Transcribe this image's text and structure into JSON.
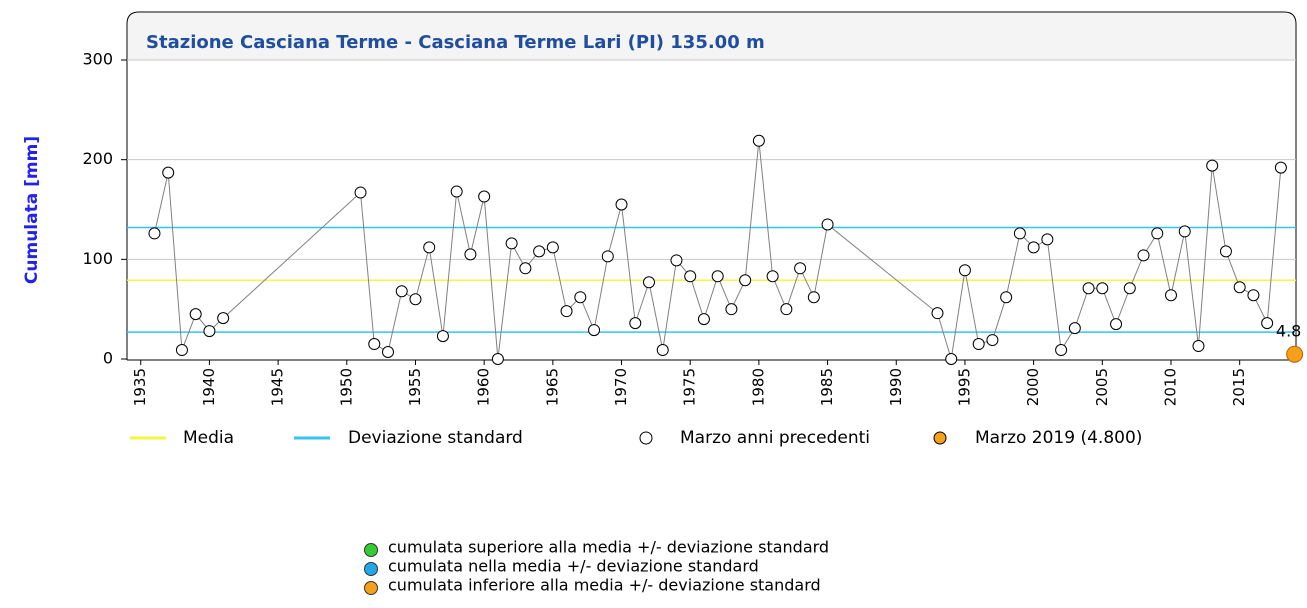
{
  "chart_data": {
    "type": "line",
    "title": "Stazione Casciana Terme - Casciana Terme Lari (PI) 135.00 m",
    "y_label": "Cumulata [mm]",
    "xlim": [
      1934,
      2019.1
    ],
    "xticks": [
      1935,
      1940,
      1945,
      1950,
      1955,
      1960,
      1965,
      1970,
      1975,
      1980,
      1985,
      1990,
      1995,
      2000,
      2005,
      2010,
      2015
    ],
    "ylim": [
      0,
      300
    ],
    "yticks": [
      0,
      100,
      200,
      300
    ],
    "grid": true,
    "series": [
      {
        "name": "Marzo anni precedenti",
        "color": "#808080",
        "x": [
          1936,
          1937,
          1938,
          1939,
          1940,
          1941,
          1951,
          1952,
          1953,
          1954,
          1955,
          1956,
          1957,
          1958,
          1959,
          1960,
          1961,
          1962,
          1963,
          1964,
          1965,
          1966,
          1967,
          1968,
          1969,
          1970,
          1971,
          1972,
          1973,
          1974,
          1975,
          1976,
          1977,
          1978,
          1979,
          1980,
          1981,
          1982,
          1983,
          1984,
          1985,
          1993,
          1994,
          1995,
          1996,
          1997,
          1998,
          1999,
          2000,
          2001,
          2002,
          2003,
          2004,
          2005,
          2006,
          2007,
          2008,
          2009,
          2010,
          2011,
          2012,
          2013,
          2014,
          2015,
          2016,
          2017,
          2018
        ],
        "values": [
          126,
          187,
          9,
          45,
          28,
          41,
          167,
          15,
          7,
          68,
          60,
          112,
          23,
          168,
          105,
          163,
          0,
          116,
          91,
          108,
          112,
          48,
          62,
          29,
          103,
          155,
          36,
          77,
          9,
          99,
          83,
          40,
          83,
          50,
          79,
          219,
          83,
          50,
          91,
          62,
          135,
          46,
          0,
          89,
          15,
          19,
          62,
          126,
          112,
          120,
          9,
          31,
          71,
          71,
          35,
          71,
          104,
          126,
          64,
          128,
          13,
          194,
          108,
          72,
          64,
          36,
          192
        ]
      },
      {
        "name": "Marzo 2019 (4.800)",
        "color": "#f5a01a",
        "x": [
          2019
        ],
        "values": [
          4.8
        ],
        "value_labels": [
          "4.8"
        ]
      }
    ],
    "reference_lines": [
      {
        "name": "Media",
        "color": "#f5f542",
        "values": [
          79
        ]
      },
      {
        "name": "Deviazione standard",
        "color": "#35c4f0",
        "values": [
          27,
          132
        ]
      }
    ],
    "notes": [
      {
        "text": "cumulata superiore alla media +/- deviazione standard",
        "color": "#33cc33"
      },
      {
        "text": "cumulata nella media +/- deviazione standard",
        "color": "#22a8e8"
      },
      {
        "text": "cumulata inferiore alla media +/- deviazione standard",
        "color": "#f5a01a"
      }
    ]
  }
}
